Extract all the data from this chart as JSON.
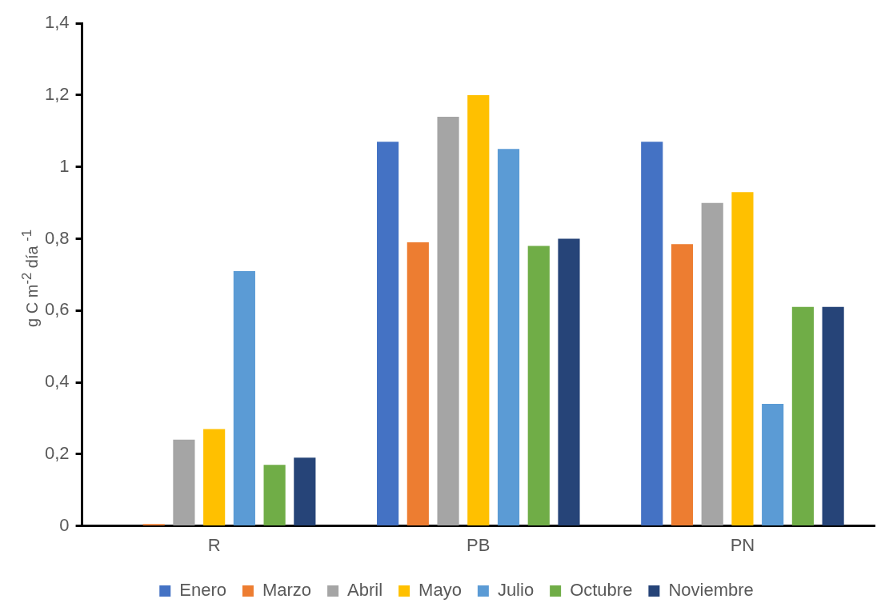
{
  "chart_data": {
    "type": "bar",
    "ylabel": "g C m$^{-2}$ día $^{-1}$",
    "categories": [
      "R",
      "PB",
      "PN"
    ],
    "series": [
      {
        "name": "Enero",
        "color": "#4472c4",
        "values": [
          0,
          1.07,
          1.07
        ]
      },
      {
        "name": "Marzo",
        "color": "#ed7d31",
        "values": [
          0.005,
          0.79,
          0.785
        ]
      },
      {
        "name": "Abril",
        "color": "#a5a5a5",
        "values": [
          0.24,
          1.14,
          0.9
        ]
      },
      {
        "name": "Mayo",
        "color": "#ffc000",
        "values": [
          0.27,
          1.2,
          0.93
        ]
      },
      {
        "name": "Julio",
        "color": "#5b9bd5",
        "values": [
          0.71,
          1.05,
          0.34
        ]
      },
      {
        "name": "Octubre",
        "color": "#70ad47",
        "values": [
          0.17,
          0.78,
          0.61
        ]
      },
      {
        "name": "Noviembre",
        "color": "#264478",
        "values": [
          0.19,
          0.8,
          0.61
        ]
      }
    ],
    "ylim": [
      0,
      1.4
    ],
    "yticks": [
      0,
      {
        "value": 0.2,
        "label": "0,2"
      },
      {
        "value": 0.4,
        "label": "0,4"
      },
      {
        "value": 0.6,
        "label": "0,6"
      },
      {
        "value": 0.8,
        "label": "0,8"
      },
      1,
      {
        "value": 1.2,
        "label": "1,2"
      },
      {
        "value": 1.4,
        "label": "1,4"
      }
    ],
    "grid": false,
    "legend": "bottom"
  }
}
